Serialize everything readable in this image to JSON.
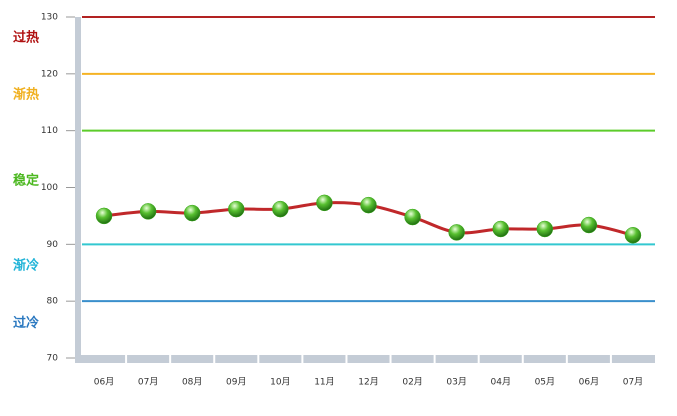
{
  "chart_data": {
    "type": "line",
    "categories": [
      "06月",
      "07月",
      "08月",
      "09月",
      "10月",
      "11月",
      "12月",
      "02月",
      "03月",
      "04月",
      "05月",
      "06月",
      "07月"
    ],
    "values": [
      95.0,
      95.8,
      95.5,
      96.2,
      96.2,
      97.3,
      96.9,
      94.8,
      92.1,
      92.7,
      92.7,
      93.4,
      91.6
    ],
    "color": "#c0282a",
    "marker_color": "#3aa81c",
    "ylim": [
      70,
      130
    ],
    "yticks": [
      70,
      80,
      90,
      100,
      110,
      120,
      130
    ],
    "reference_lines": [
      {
        "value": 130,
        "color": "#b22222"
      },
      {
        "value": 120,
        "color": "#f5b324"
      },
      {
        "value": 110,
        "color": "#5ccc2a"
      },
      {
        "value": 90,
        "color": "#33c8d0"
      },
      {
        "value": 80,
        "color": "#3a8fcc"
      }
    ],
    "zone_labels": [
      {
        "label": "过热",
        "value": 126.3,
        "color": "#b01010"
      },
      {
        "label": "渐热",
        "value": 116.3,
        "color": "#f0b020"
      },
      {
        "label": "稳定",
        "value": 101.1,
        "color": "#4cb820"
      },
      {
        "label": "渐冷",
        "value": 86.2,
        "color": "#22b4d8"
      },
      {
        "label": "过冷",
        "value": 76.1,
        "color": "#2a78c0"
      }
    ]
  }
}
